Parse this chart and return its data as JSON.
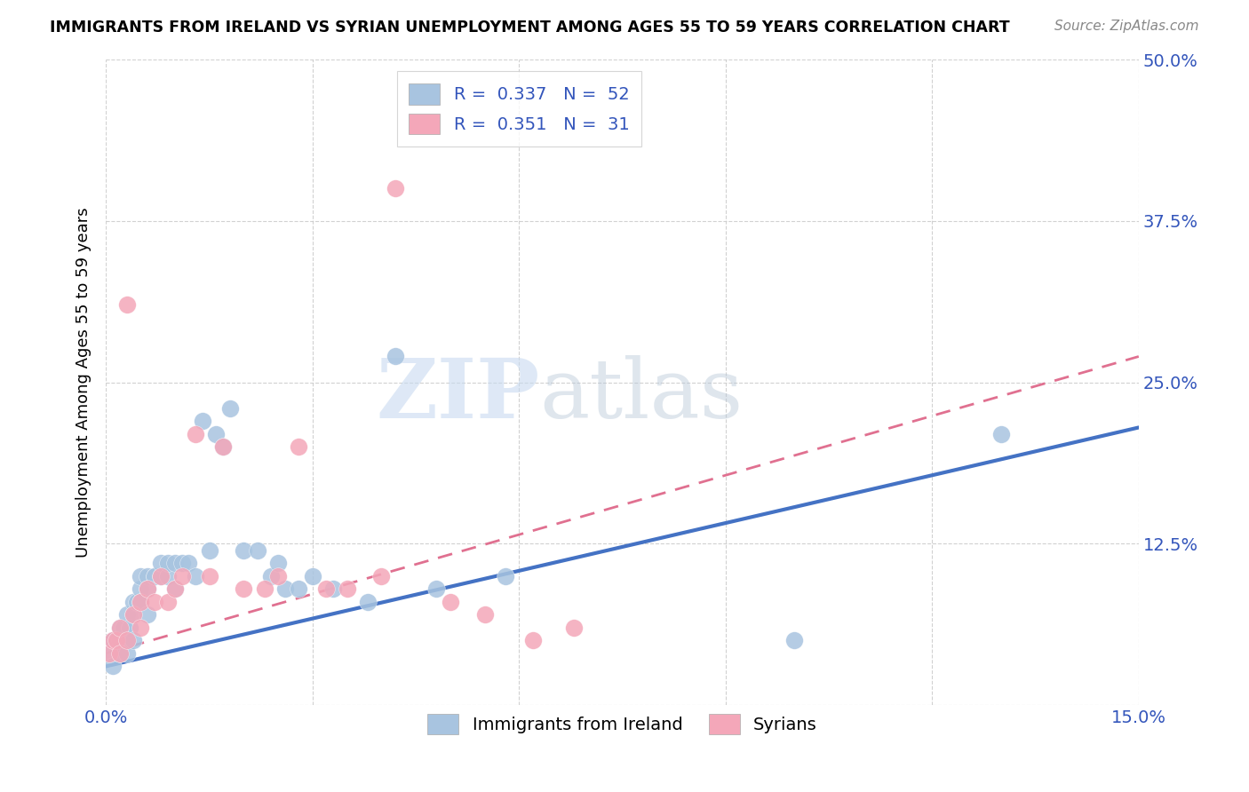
{
  "title": "IMMIGRANTS FROM IRELAND VS SYRIAN UNEMPLOYMENT AMONG AGES 55 TO 59 YEARS CORRELATION CHART",
  "source": "Source: ZipAtlas.com",
  "ylabel": "Unemployment Among Ages 55 to 59 years",
  "xlim": [
    0.0,
    0.15
  ],
  "ylim": [
    0.0,
    0.5
  ],
  "xticks": [
    0.0,
    0.03,
    0.06,
    0.09,
    0.12,
    0.15
  ],
  "yticks": [
    0.0,
    0.125,
    0.25,
    0.375,
    0.5
  ],
  "xticklabels": [
    "0.0%",
    "",
    "",
    "",
    "",
    "15.0%"
  ],
  "yticklabels": [
    "",
    "12.5%",
    "25.0%",
    "37.5%",
    "50.0%"
  ],
  "color_ireland": "#a8c4e0",
  "color_syria": "#f4a7b9",
  "trendline_ireland_color": "#4472c4",
  "trendline_syria_color": "#e07090",
  "watermark_zip": "ZIP",
  "watermark_atlas": "atlas",
  "ireland_x": [
    0.0005,
    0.001,
    0.001,
    0.0015,
    0.002,
    0.002,
    0.002,
    0.0025,
    0.003,
    0.003,
    0.003,
    0.0035,
    0.004,
    0.004,
    0.004,
    0.0045,
    0.005,
    0.005,
    0.005,
    0.006,
    0.006,
    0.006,
    0.007,
    0.007,
    0.008,
    0.008,
    0.009,
    0.009,
    0.01,
    0.01,
    0.011,
    0.012,
    0.013,
    0.014,
    0.015,
    0.016,
    0.017,
    0.018,
    0.02,
    0.022,
    0.024,
    0.025,
    0.026,
    0.028,
    0.03,
    0.033,
    0.038,
    0.042,
    0.048,
    0.058,
    0.1,
    0.13
  ],
  "ireland_y": [
    0.04,
    0.05,
    0.03,
    0.05,
    0.06,
    0.04,
    0.05,
    0.06,
    0.07,
    0.05,
    0.04,
    0.06,
    0.08,
    0.07,
    0.05,
    0.08,
    0.09,
    0.1,
    0.08,
    0.1,
    0.09,
    0.07,
    0.1,
    0.1,
    0.1,
    0.11,
    0.1,
    0.11,
    0.11,
    0.09,
    0.11,
    0.11,
    0.1,
    0.22,
    0.12,
    0.21,
    0.2,
    0.23,
    0.12,
    0.12,
    0.1,
    0.11,
    0.09,
    0.09,
    0.1,
    0.09,
    0.08,
    0.27,
    0.09,
    0.1,
    0.05,
    0.21
  ],
  "syria_x": [
    0.0005,
    0.001,
    0.0015,
    0.002,
    0.002,
    0.003,
    0.003,
    0.004,
    0.005,
    0.005,
    0.006,
    0.007,
    0.008,
    0.009,
    0.01,
    0.011,
    0.013,
    0.015,
    0.017,
    0.02,
    0.023,
    0.025,
    0.028,
    0.032,
    0.035,
    0.04,
    0.042,
    0.05,
    0.055,
    0.062,
    0.068
  ],
  "syria_y": [
    0.04,
    0.05,
    0.05,
    0.06,
    0.04,
    0.05,
    0.31,
    0.07,
    0.08,
    0.06,
    0.09,
    0.08,
    0.1,
    0.08,
    0.09,
    0.1,
    0.21,
    0.1,
    0.2,
    0.09,
    0.09,
    0.1,
    0.2,
    0.09,
    0.09,
    0.1,
    0.4,
    0.08,
    0.07,
    0.05,
    0.06
  ],
  "trendline_ireland_x0": 0.0,
  "trendline_ireland_y0": 0.03,
  "trendline_ireland_x1": 0.15,
  "trendline_ireland_y1": 0.215,
  "trendline_syria_x0": 0.0,
  "trendline_syria_y0": 0.04,
  "trendline_syria_x1": 0.15,
  "trendline_syria_y1": 0.27
}
